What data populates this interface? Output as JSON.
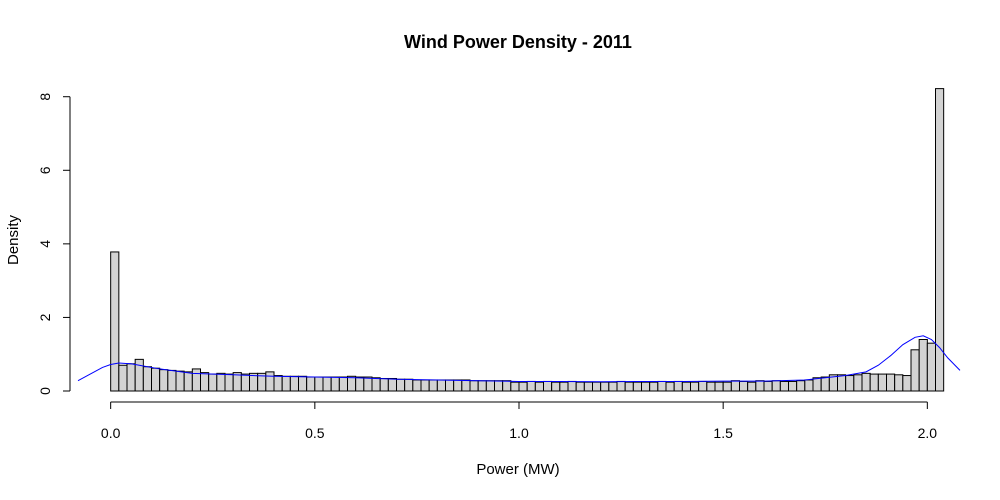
{
  "chart_data": {
    "type": "bar",
    "title": "Wind Power Density - 2011",
    "xlabel": "Power (MW)",
    "ylabel": "Density",
    "xlim": [
      -0.08,
      2.08
    ],
    "ylim": [
      0,
      8.4
    ],
    "x_ticks": [
      0,
      0.5,
      1,
      1.5,
      2
    ],
    "x_tick_labels": [
      "0.0",
      "0.5",
      "1.0",
      "1.5",
      "2.0"
    ],
    "y_ticks": [
      0,
      2,
      4,
      6,
      8
    ],
    "y_tick_labels": [
      "0",
      "2",
      "4",
      "6",
      "8"
    ],
    "bin_width": 0.02,
    "bin_start": 0,
    "values": [
      3.78,
      0.7,
      0.74,
      0.86,
      0.66,
      0.62,
      0.58,
      0.56,
      0.54,
      0.52,
      0.6,
      0.5,
      0.46,
      0.48,
      0.46,
      0.5,
      0.46,
      0.48,
      0.48,
      0.52,
      0.42,
      0.4,
      0.4,
      0.4,
      0.38,
      0.38,
      0.38,
      0.38,
      0.38,
      0.4,
      0.38,
      0.38,
      0.36,
      0.34,
      0.34,
      0.32,
      0.32,
      0.3,
      0.3,
      0.3,
      0.3,
      0.3,
      0.3,
      0.3,
      0.28,
      0.28,
      0.28,
      0.28,
      0.28,
      0.24,
      0.24,
      0.26,
      0.24,
      0.26,
      0.24,
      0.24,
      0.26,
      0.24,
      0.24,
      0.24,
      0.24,
      0.24,
      0.26,
      0.24,
      0.24,
      0.24,
      0.24,
      0.26,
      0.24,
      0.26,
      0.24,
      0.24,
      0.26,
      0.24,
      0.24,
      0.24,
      0.28,
      0.26,
      0.24,
      0.28,
      0.26,
      0.28,
      0.26,
      0.26,
      0.28,
      0.3,
      0.36,
      0.38,
      0.44,
      0.44,
      0.42,
      0.44,
      0.48,
      0.46,
      0.46,
      0.46,
      0.44,
      0.42,
      1.12,
      1.4,
      1.3,
      8.22
    ],
    "density_curve": {
      "x": [
        -0.08,
        -0.05,
        -0.02,
        0.0,
        0.02,
        0.05,
        0.08,
        0.12,
        0.16,
        0.2,
        0.3,
        0.4,
        0.5,
        0.6,
        0.7,
        0.8,
        0.9,
        1.0,
        1.1,
        1.2,
        1.3,
        1.4,
        1.5,
        1.6,
        1.7,
        1.75,
        1.8,
        1.85,
        1.88,
        1.91,
        1.94,
        1.97,
        1.99,
        2.01,
        2.03,
        2.05,
        2.08
      ],
      "y": [
        0.28,
        0.46,
        0.64,
        0.72,
        0.76,
        0.74,
        0.68,
        0.6,
        0.54,
        0.48,
        0.44,
        0.4,
        0.38,
        0.36,
        0.32,
        0.3,
        0.28,
        0.26,
        0.26,
        0.25,
        0.26,
        0.26,
        0.27,
        0.27,
        0.3,
        0.36,
        0.42,
        0.52,
        0.7,
        0.96,
        1.26,
        1.46,
        1.5,
        1.4,
        1.18,
        0.9,
        0.56
      ]
    },
    "colors": {
      "bar_fill": "#d3d3d3",
      "bar_stroke": "#000000",
      "density_line": "#0000ff"
    },
    "grid": false,
    "legend": "none"
  }
}
